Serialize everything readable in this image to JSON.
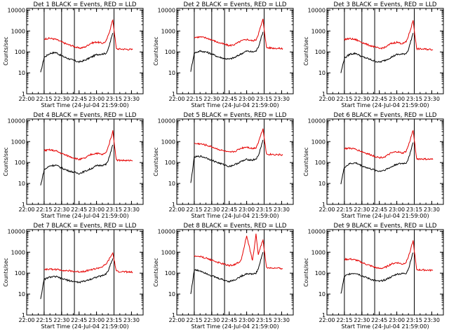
{
  "colors": {
    "events": "#000000",
    "lld": "#e60000",
    "axes": "#000000",
    "background": "#ffffff"
  },
  "figure": {
    "xlabel": "Start Time (24-Jul-04 21:59:00)",
    "ylabel": "Counts/sec",
    "x_tick_labels": [
      "22:00",
      "22:15",
      "22:30",
      "22:45",
      "23:00",
      "23:15",
      "23:30"
    ],
    "y_tick_labels": [
      "1",
      "10",
      "100",
      "1000",
      "10000"
    ]
  },
  "chart_data": [
    {
      "type": "line",
      "title": "Det 1 BLACK = Events, RED = LLD",
      "xlabel": "Start Time (24-Jul-04 21:59:00)",
      "ylabel": "Counts/sec",
      "yscale": "log",
      "ylim": [
        1,
        12000
      ],
      "x": [
        "22:12",
        "22:15",
        "22:20",
        "22:25",
        "22:30",
        "22:35",
        "22:40",
        "22:45",
        "22:50",
        "22:55",
        "23:00",
        "23:05",
        "23:08",
        "23:10",
        "23:12",
        "23:14",
        "23:17",
        "23:25",
        "23:31"
      ],
      "series": [
        {
          "name": "Events",
          "values": [
            10,
            55,
            85,
            95,
            65,
            50,
            40,
            33,
            40,
            55,
            75,
            80,
            85,
            130,
            330,
            800,
            null,
            null,
            null
          ]
        },
        {
          "name": "LLD",
          "values": [
            null,
            420,
            450,
            400,
            300,
            230,
            190,
            150,
            170,
            260,
            300,
            260,
            310,
            600,
            1400,
            3500,
            140,
            135,
            130
          ]
        }
      ],
      "vlines": [
        "22:15",
        "22:30",
        "22:41",
        "23:15"
      ]
    },
    {
      "type": "line",
      "title": "Det 2 BLACK = Events, RED = LLD",
      "xlabel": "Start Time (24-Jul-04 21:59:00)",
      "ylabel": "Counts/sec",
      "yscale": "log",
      "ylim": [
        1,
        12000
      ],
      "x": [
        "22:12",
        "22:15",
        "22:20",
        "22:25",
        "22:30",
        "22:35",
        "22:40",
        "22:45",
        "22:50",
        "22:55",
        "23:00",
        "23:05",
        "23:08",
        "23:10",
        "23:12",
        "23:14",
        "23:17",
        "23:25",
        "23:31"
      ],
      "series": [
        {
          "name": "Events",
          "values": [
            12,
            90,
            110,
            100,
            80,
            60,
            50,
            45,
            55,
            80,
            110,
            100,
            110,
            170,
            400,
            900,
            null,
            null,
            null
          ]
        },
        {
          "name": "LLD",
          "values": [
            null,
            500,
            520,
            470,
            380,
            290,
            240,
            200,
            230,
            330,
            400,
            340,
            380,
            700,
            1600,
            3600,
            160,
            150,
            145
          ]
        }
      ],
      "vlines": [
        "22:15",
        "22:30",
        "22:41",
        "23:15"
      ]
    },
    {
      "type": "line",
      "title": "Det 3 BLACK = Events, RED = LLD",
      "xlabel": "Start Time (24-Jul-04 21:59:00)",
      "ylabel": "Counts/sec",
      "yscale": "log",
      "ylim": [
        1,
        12000
      ],
      "x": [
        "22:12",
        "22:15",
        "22:20",
        "22:25",
        "22:30",
        "22:35",
        "22:40",
        "22:45",
        "22:50",
        "22:55",
        "23:00",
        "23:05",
        "23:08",
        "23:10",
        "23:12",
        "23:14",
        "23:17",
        "23:25",
        "23:31"
      ],
      "series": [
        {
          "name": "Events",
          "values": [
            10,
            50,
            80,
            85,
            60,
            48,
            38,
            32,
            40,
            55,
            75,
            78,
            85,
            130,
            330,
            800,
            null,
            null,
            null
          ]
        },
        {
          "name": "LLD",
          "values": [
            null,
            400,
            430,
            380,
            290,
            220,
            180,
            145,
            165,
            250,
            290,
            250,
            300,
            580,
            1300,
            3300,
            140,
            135,
            130
          ]
        }
      ],
      "vlines": [
        "22:15",
        "22:30",
        "22:41",
        "23:15"
      ]
    },
    {
      "type": "line",
      "title": "Det 4 BLACK = Events, RED = LLD",
      "xlabel": "Start Time (24-Jul-04 21:59:00)",
      "ylabel": "Counts/sec",
      "yscale": "log",
      "ylim": [
        1,
        12000
      ],
      "x": [
        "22:12",
        "22:15",
        "22:20",
        "22:25",
        "22:30",
        "22:35",
        "22:40",
        "22:45",
        "22:50",
        "22:55",
        "23:00",
        "23:05",
        "23:08",
        "23:10",
        "23:12",
        "23:14",
        "23:17",
        "23:25",
        "23:31"
      ],
      "series": [
        {
          "name": "Events",
          "values": [
            8,
            45,
            70,
            75,
            55,
            42,
            35,
            30,
            38,
            50,
            70,
            75,
            80,
            120,
            300,
            700,
            null,
            null,
            null
          ]
        },
        {
          "name": "LLD",
          "values": [
            null,
            380,
            400,
            360,
            270,
            210,
            170,
            140,
            160,
            240,
            280,
            240,
            290,
            550,
            1300,
            3200,
            130,
            125,
            120
          ]
        }
      ],
      "vlines": [
        "22:15",
        "22:30",
        "22:41",
        "23:15"
      ]
    },
    {
      "type": "line",
      "title": "Det 5 BLACK = Events, RED = LLD",
      "xlabel": "Start Time (24-Jul-04 21:59:00)",
      "ylabel": "Counts/sec",
      "yscale": "log",
      "ylim": [
        1,
        12000
      ],
      "x": [
        "22:12",
        "22:15",
        "22:20",
        "22:25",
        "22:30",
        "22:35",
        "22:40",
        "22:45",
        "22:50",
        "22:55",
        "23:00",
        "23:05",
        "23:08",
        "23:10",
        "23:12",
        "23:14",
        "23:17",
        "23:25",
        "23:31"
      ],
      "series": [
        {
          "name": "Events",
          "values": [
            10,
            180,
            200,
            170,
            130,
            100,
            80,
            65,
            80,
            110,
            140,
            130,
            150,
            200,
            500,
            1200,
            null,
            null,
            null
          ]
        },
        {
          "name": "LLD",
          "values": [
            null,
            800,
            780,
            680,
            560,
            440,
            360,
            300,
            340,
            480,
            560,
            460,
            520,
            900,
            2000,
            4200,
            250,
            240,
            230
          ]
        }
      ],
      "vlines": [
        "22:15",
        "22:30",
        "22:41",
        "23:15"
      ]
    },
    {
      "type": "line",
      "title": "Det 6 BLACK = Events, RED = LLD",
      "xlabel": "Start Time (24-Jul-04 21:59:00)",
      "ylabel": "Counts/sec",
      "yscale": "log",
      "ylim": [
        1,
        12000
      ],
      "x": [
        "22:12",
        "22:15",
        "22:20",
        "22:25",
        "22:30",
        "22:35",
        "22:40",
        "22:45",
        "22:50",
        "22:55",
        "23:00",
        "23:05",
        "23:08",
        "23:10",
        "23:12",
        "23:14",
        "23:17",
        "23:25",
        "23:31"
      ],
      "series": [
        {
          "name": "Events",
          "values": [
            10,
            60,
            90,
            95,
            70,
            55,
            45,
            38,
            45,
            60,
            85,
            90,
            95,
            150,
            380,
            900,
            null,
            null,
            null
          ]
        },
        {
          "name": "LLD",
          "values": [
            null,
            460,
            480,
            430,
            330,
            260,
            210,
            170,
            190,
            280,
            330,
            280,
            340,
            650,
            1500,
            3600,
            150,
            145,
            140
          ]
        }
      ],
      "vlines": [
        "22:15",
        "22:30",
        "22:41",
        "23:15"
      ]
    },
    {
      "type": "line",
      "title": "Det 7 BLACK = Events, RED = LLD",
      "xlabel": "Start Time (24-Jul-04 21:59:00)",
      "ylabel": "Counts/sec",
      "yscale": "log",
      "ylim": [
        1,
        12000
      ],
      "x": [
        "22:12",
        "22:15",
        "22:20",
        "22:25",
        "22:30",
        "22:35",
        "22:40",
        "22:45",
        "22:50",
        "22:55",
        "23:00",
        "23:05",
        "23:08",
        "23:10",
        "23:12",
        "23:14",
        "23:17",
        "23:25",
        "23:31"
      ],
      "series": [
        {
          "name": "Events",
          "values": [
            6,
            50,
            65,
            68,
            55,
            46,
            40,
            36,
            42,
            52,
            65,
            75,
            90,
            130,
            260,
            500,
            null,
            null,
            null
          ]
        },
        {
          "name": "LLD",
          "values": [
            null,
            150,
            155,
            150,
            140,
            130,
            122,
            115,
            125,
            145,
            165,
            200,
            260,
            380,
            600,
            900,
            120,
            115,
            110
          ]
        }
      ],
      "vlines": [
        "22:15",
        "22:30",
        "22:41",
        "23:15"
      ]
    },
    {
      "type": "line",
      "title": "Det 8 BLACK = Events, RED = LLD",
      "xlabel": "Start Time (24-Jul-04 21:59:00)",
      "ylabel": "Counts/sec",
      "yscale": "log",
      "ylim": [
        1,
        12000
      ],
      "x": [
        "22:12",
        "22:15",
        "22:20",
        "22:25",
        "22:30",
        "22:35",
        "22:40",
        "22:45",
        "22:50",
        "22:55",
        "23:00",
        "23:05",
        "23:08",
        "23:10",
        "23:12",
        "23:14",
        "23:17",
        "23:25",
        "23:31"
      ],
      "series": [
        {
          "name": "Events",
          "values": [
            10,
            140,
            130,
            100,
            75,
            58,
            48,
            40,
            48,
            70,
            95,
            90,
            100,
            160,
            420,
            1000,
            null,
            null,
            null
          ]
        },
        {
          "name": "LLD",
          "values": [
            null,
            650,
            620,
            520,
            420,
            330,
            270,
            230,
            260,
            380,
            6000,
            380,
            7000,
            800,
            1800,
            4000,
            180,
            170,
            165
          ]
        }
      ],
      "vlines": [
        "22:15",
        "22:30",
        "22:41",
        "23:15"
      ]
    },
    {
      "type": "line",
      "title": "Det 9 BLACK = Events, RED = LLD",
      "xlabel": "Start Time (24-Jul-04 21:59:00)",
      "ylabel": "Counts/sec",
      "yscale": "log",
      "ylim": [
        1,
        12000
      ],
      "x": [
        "22:12",
        "22:15",
        "22:20",
        "22:25",
        "22:30",
        "22:35",
        "22:40",
        "22:45",
        "22:50",
        "22:55",
        "23:00",
        "23:05",
        "23:08",
        "23:10",
        "23:12",
        "23:14",
        "23:17",
        "23:25",
        "23:31"
      ],
      "series": [
        {
          "name": "Events",
          "values": [
            10,
            70,
            95,
            100,
            75,
            58,
            46,
            40,
            48,
            65,
            90,
            95,
            100,
            160,
            400,
            950,
            null,
            null,
            null
          ]
        },
        {
          "name": "LLD",
          "values": [
            null,
            450,
            470,
            420,
            320,
            250,
            200,
            165,
            185,
            270,
            320,
            270,
            330,
            620,
            1450,
            3500,
            145,
            140,
            135
          ]
        }
      ],
      "vlines": [
        "22:15",
        "22:30",
        "22:41",
        "23:15"
      ]
    }
  ]
}
